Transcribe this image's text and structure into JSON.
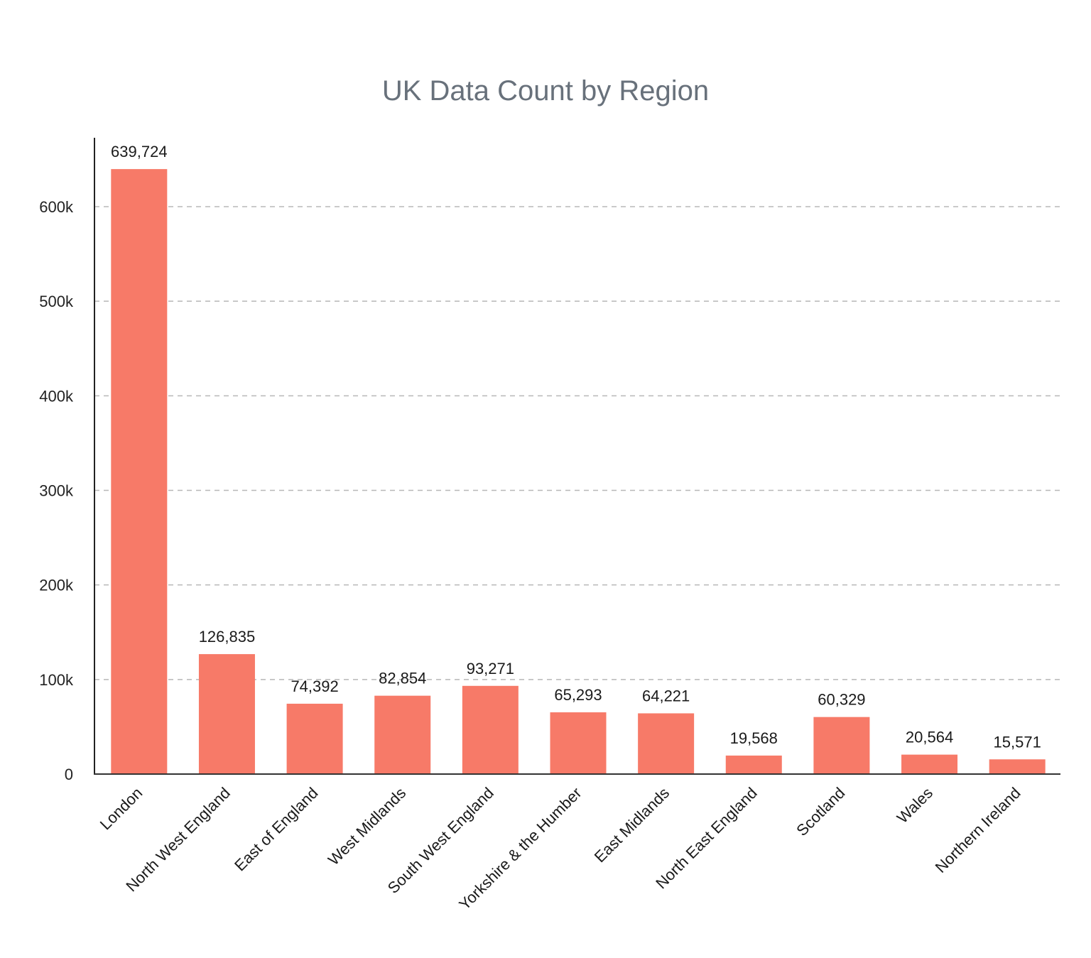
{
  "chart_data": {
    "type": "bar",
    "title": "UK Data Count by Region",
    "xlabel": "",
    "ylabel": "",
    "categories": [
      "London",
      "North West England",
      "East of England",
      "West Midlands",
      "South West England",
      "Yorkshire & the Humber",
      "East Midlands",
      "North East England",
      "Scotland",
      "Wales",
      "Northern Ireland"
    ],
    "values": [
      639724,
      126835,
      74392,
      82854,
      93271,
      65293,
      64221,
      19568,
      60329,
      20564,
      15571
    ],
    "value_labels": [
      "639,724",
      "126,835",
      "74,392",
      "82,854",
      "93,271",
      "65,293",
      "64,221",
      "19,568",
      "60,329",
      "20,564",
      "15,571"
    ],
    "ylim": [
      0,
      672000
    ],
    "yticks": [
      0,
      100000,
      200000,
      300000,
      400000,
      500000,
      600000
    ],
    "ytick_labels": [
      "0",
      "100k",
      "200k",
      "300k",
      "400k",
      "500k",
      "600k"
    ],
    "grid": "horizontal dashed",
    "legend": "none",
    "bar_color": "#f77a68",
    "x_label_rotation": -45
  }
}
